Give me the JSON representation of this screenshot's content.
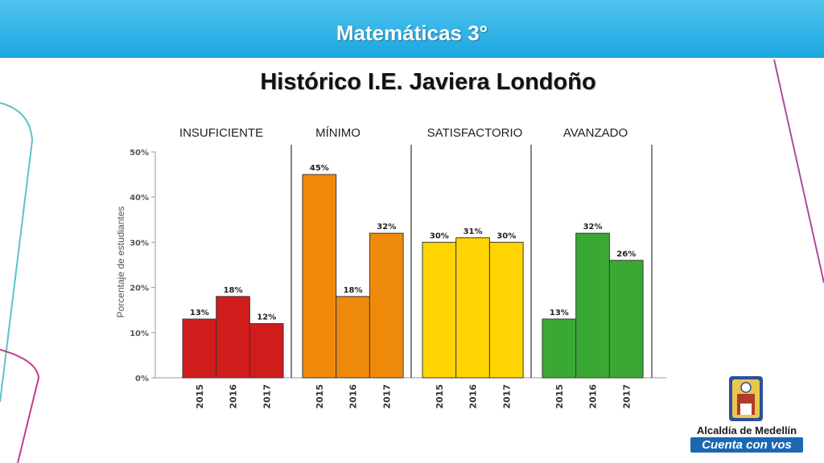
{
  "header": {
    "title": "Matemáticas 3°"
  },
  "slide": {
    "title": "Histórico I.E. Javiera Londoño"
  },
  "logo": {
    "line1": "Alcaldía de Medellín",
    "line2": "Cuenta con vos"
  },
  "colors": {
    "header": "#1aa6e0",
    "insuficiente": "#d11c1c",
    "minimo": "#f08a0b",
    "satisfactorio": "#ffd400",
    "avanzado": "#3aa934"
  },
  "chart_data": {
    "type": "bar",
    "ylabel": "Porcentaje de estudiantes",
    "ylim": [
      0,
      50
    ],
    "yticks": [
      0,
      10,
      20,
      30,
      40,
      50
    ],
    "ytick_labels": [
      "0%",
      "10%",
      "20%",
      "30%",
      "40%",
      "50%"
    ],
    "groups": [
      {
        "name": "INSUFICIENTE",
        "color": "#d11c1c",
        "categories": [
          "2015",
          "2016",
          "2017"
        ],
        "values": [
          13,
          18,
          12
        ],
        "labels": [
          "13%",
          "18%",
          "12%"
        ]
      },
      {
        "name": "MÍNIMO",
        "color": "#f08a0b",
        "categories": [
          "2015",
          "2016",
          "2017"
        ],
        "values": [
          45,
          18,
          32
        ],
        "labels": [
          "45%",
          "18%",
          "32%"
        ]
      },
      {
        "name": "SATISFACTORIO",
        "color": "#ffd400",
        "categories": [
          "2015",
          "2016",
          "2017"
        ],
        "values": [
          30,
          31,
          30
        ],
        "labels": [
          "30%",
          "31%",
          "30%"
        ]
      },
      {
        "name": "AVANZADO",
        "color": "#3aa934",
        "categories": [
          "2015",
          "2016",
          "2017"
        ],
        "values": [
          13,
          32,
          26
        ],
        "labels": [
          "13%",
          "32%",
          "26%"
        ]
      }
    ]
  }
}
